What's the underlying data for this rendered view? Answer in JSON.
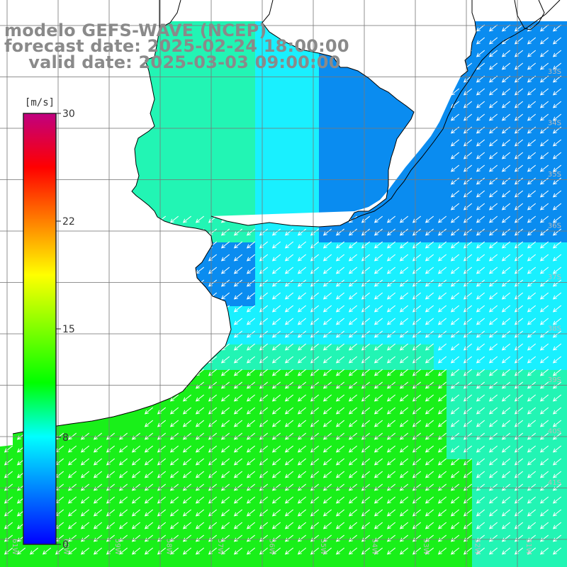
{
  "title": {
    "line1": "modelo GEFS-WAVE (NCEP)",
    "line2": "forecast date: 2025-02-24 18:00:00",
    "line3": "    valid date: 2025-03-03 09:00:00"
  },
  "colorbar": {
    "unit_label": "[m/s]",
    "ticks": [
      "30",
      "22",
      "15",
      "8",
      "0"
    ],
    "colors": [
      "#0000ff",
      "#0080ff",
      "#00ffff",
      "#00ff00",
      "#80ff00",
      "#ffff00",
      "#ff8000",
      "#ff0000",
      "#c00080"
    ]
  },
  "map": {
    "ocean_colors": {
      "blue": "#0a8cf0",
      "cyan": "#19f0ff",
      "teal": "#22f5b4",
      "green": "#19f019"
    },
    "land_color": "#ffffff",
    "arrow_color": "#ffffff",
    "lat_labels": [
      "33S",
      "34S",
      "35S",
      "36S",
      "37S",
      "38S",
      "39S",
      "40S",
      "41S"
    ],
    "lon_labels": [
      "61W",
      "60W",
      "59W",
      "58W",
      "57W",
      "56W",
      "55W",
      "54W",
      "53W",
      "52W",
      "51W"
    ]
  }
}
